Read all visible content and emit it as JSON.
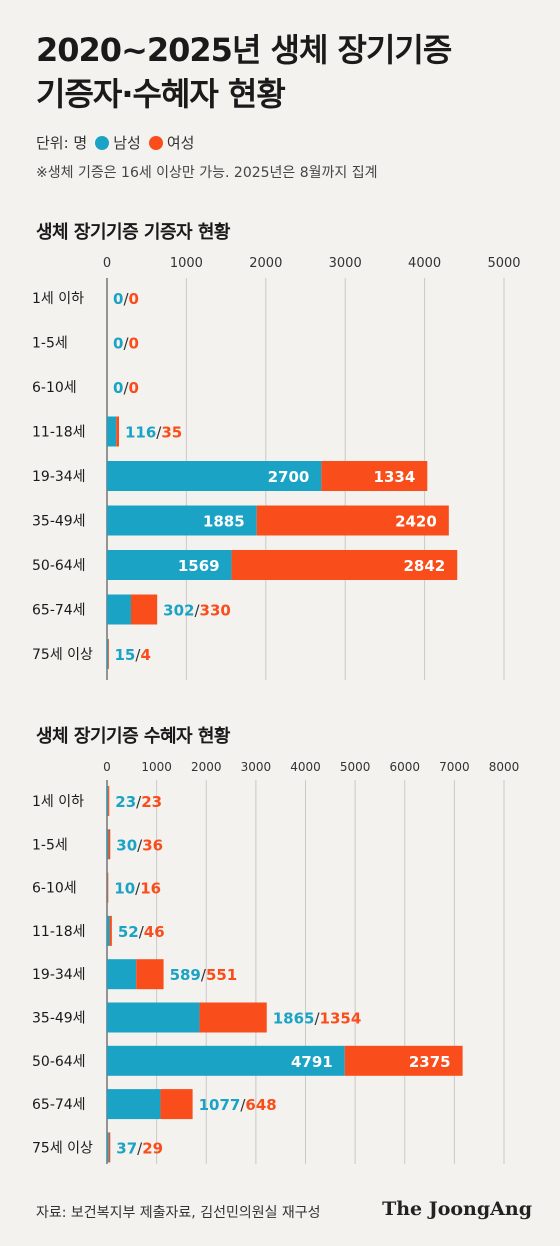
{
  "header": {
    "title_line1": "2020~2025년 생체 장기기증",
    "title_line2": "기증자·수혜자 현황",
    "unit_label": "단위: 명",
    "legend_male": "남성",
    "legend_female": "여성",
    "note": "※생체 기증은 16세 이상만 가능. 2025년은 8월까지 집계"
  },
  "colors": {
    "male": "#1ba3c6",
    "female": "#fa4d1c",
    "grid": "#c9c9c9",
    "male_text": "#1ba3c6",
    "female_text": "#fa4d1c"
  },
  "footer": {
    "source": "자료: 보건복지부 제출자료, 김선민의원실 재구성",
    "brand": "The JoongAng"
  },
  "chart_data": [
    {
      "type": "bar",
      "orientation": "horizontal",
      "stacked": true,
      "title": "생체 장기기증 기증자 현황",
      "categories": [
        "1세 이하",
        "1-5세",
        "6-10세",
        "11-18세",
        "19-34세",
        "35-49세",
        "50-64세",
        "65-74세",
        "75세 이상"
      ],
      "series": [
        {
          "name": "남성",
          "values": [
            0,
            0,
            0,
            116,
            2700,
            1885,
            1569,
            302,
            15
          ]
        },
        {
          "name": "여성",
          "values": [
            0,
            0,
            0,
            35,
            1334,
            2420,
            2842,
            330,
            4
          ]
        }
      ],
      "xlim": [
        0,
        5000
      ],
      "ticks": [
        0,
        1000,
        2000,
        3000,
        4000,
        5000
      ],
      "grid": true
    },
    {
      "type": "bar",
      "orientation": "horizontal",
      "stacked": true,
      "title": "생체 장기기증 수혜자 현황",
      "categories": [
        "1세 이하",
        "1-5세",
        "6-10세",
        "11-18세",
        "19-34세",
        "35-49세",
        "50-64세",
        "65-74세",
        "75세 이상"
      ],
      "series": [
        {
          "name": "남성",
          "values": [
            23,
            30,
            10,
            52,
            589,
            1865,
            4791,
            1077,
            37
          ]
        },
        {
          "name": "여성",
          "values": [
            23,
            36,
            16,
            46,
            551,
            1354,
            2375,
            648,
            29
          ]
        }
      ],
      "xlim": [
        0,
        8000
      ],
      "ticks": [
        0,
        1000,
        2000,
        3000,
        4000,
        5000,
        6000,
        7000,
        8000
      ],
      "grid": true
    }
  ]
}
